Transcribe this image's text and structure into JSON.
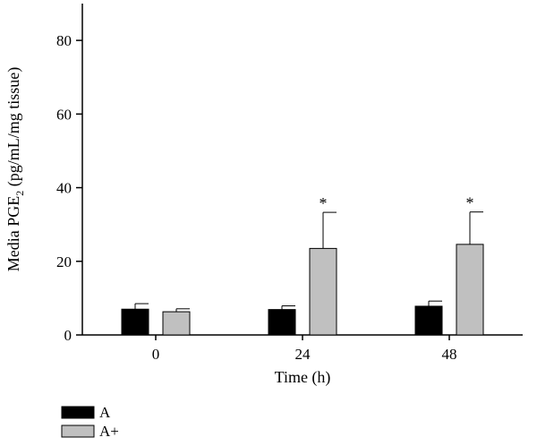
{
  "chart_data": {
    "type": "bar",
    "xlabel": "Time (h)",
    "ylabel_main": "Media PGE",
    "ylabel_sub": "2",
    "ylabel_tail": " (pg/mL/mg tissue)",
    "categories": [
      "0",
      "24",
      "48"
    ],
    "ylim": [
      0,
      90
    ],
    "yticks": [
      0,
      20,
      40,
      60,
      80
    ],
    "grid": false,
    "legend_position": "bottom-left",
    "series": [
      {
        "name": "A",
        "color": "#000000",
        "values": [
          7.0,
          6.9,
          7.8
        ],
        "errors": [
          1.5,
          1.0,
          1.4
        ],
        "significance": [
          "",
          "",
          ""
        ]
      },
      {
        "name": "A+",
        "color": "#c0c0c0",
        "values": [
          6.3,
          23.5,
          24.6
        ],
        "errors": [
          0.8,
          9.8,
          8.8
        ],
        "significance": [
          "",
          "*",
          "*"
        ]
      }
    ]
  }
}
